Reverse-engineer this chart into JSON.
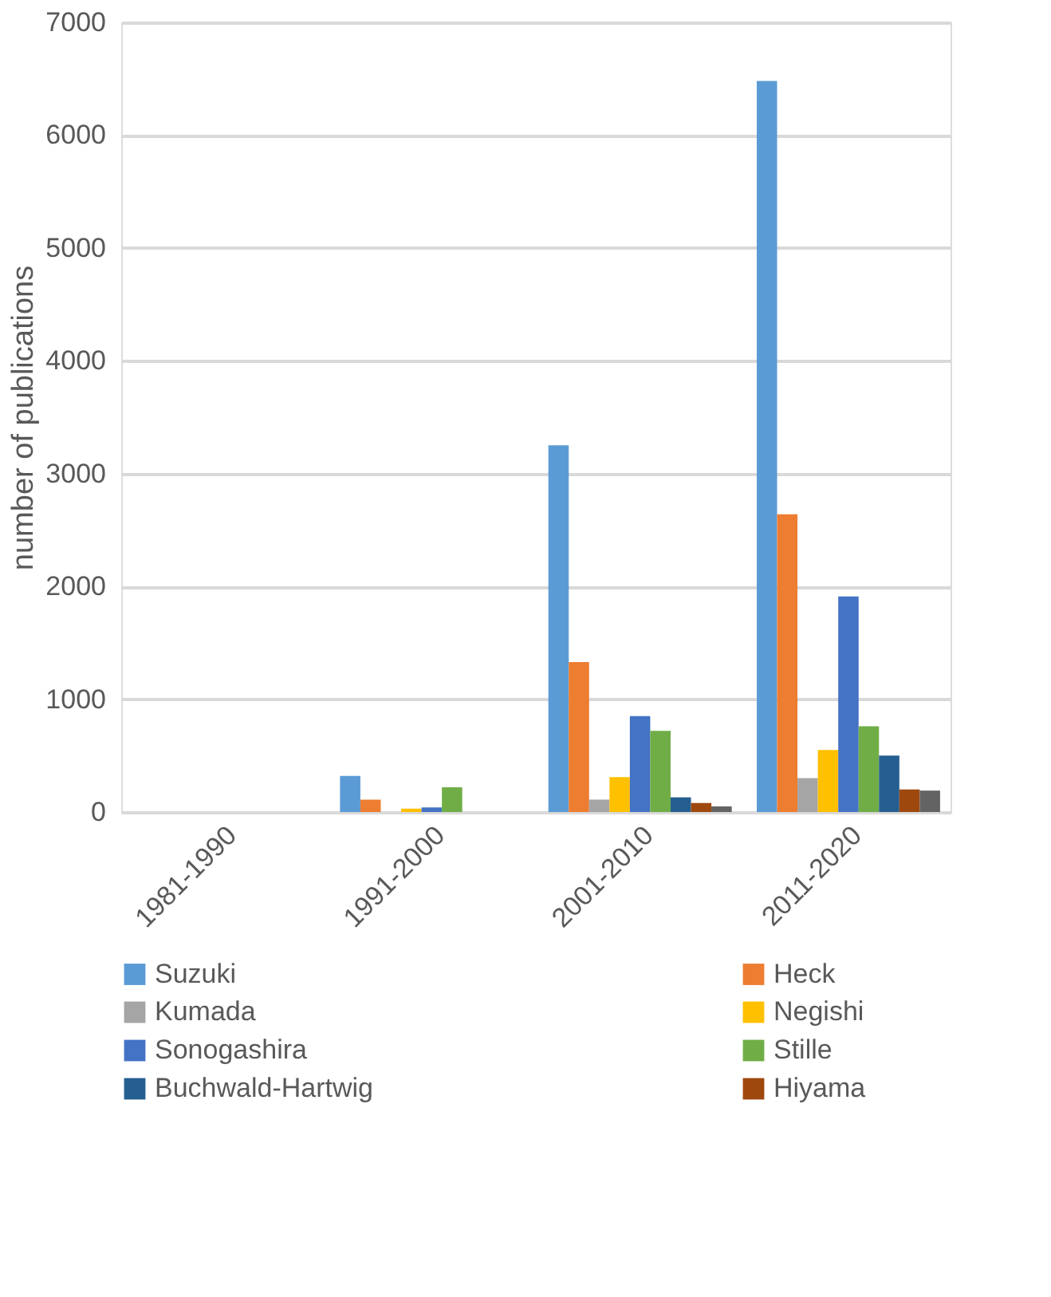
{
  "chart_data": {
    "type": "bar",
    "ylabel": "number of publications",
    "categories": [
      "1981-1990",
      "1991-2000",
      "2001-2010",
      "2011-2020"
    ],
    "ylim": [
      0,
      7000
    ],
    "yticks": [
      0,
      1000,
      2000,
      3000,
      4000,
      5000,
      6000,
      7000
    ],
    "grid": "y",
    "legend": "bottom",
    "series": [
      {
        "name": "Suzuki",
        "color": "#5b9bd5",
        "values": [
          0,
          320,
          3250,
          6480
        ]
      },
      {
        "name": "Heck",
        "color": "#ed7d31",
        "values": [
          0,
          110,
          1330,
          2640
        ]
      },
      {
        "name": "Kumada",
        "color": "#a5a5a5",
        "values": [
          0,
          0,
          110,
          300
        ]
      },
      {
        "name": "Negishi",
        "color": "#ffc000",
        "values": [
          0,
          30,
          310,
          550
        ]
      },
      {
        "name": "Sonogashira",
        "color": "#4472c4",
        "values": [
          0,
          40,
          850,
          1910
        ]
      },
      {
        "name": "Stille",
        "color": "#70ad47",
        "values": [
          0,
          220,
          720,
          760
        ]
      },
      {
        "name": "Buchwald-Hartwig",
        "color": "#255e91",
        "values": [
          0,
          0,
          130,
          500
        ]
      },
      {
        "name": "Hiyama",
        "color": "#9e480e",
        "values": [
          0,
          0,
          80,
          200
        ]
      },
      {
        "color": "#636363",
        "values": [
          0,
          0,
          50,
          190
        ]
      }
    ]
  }
}
